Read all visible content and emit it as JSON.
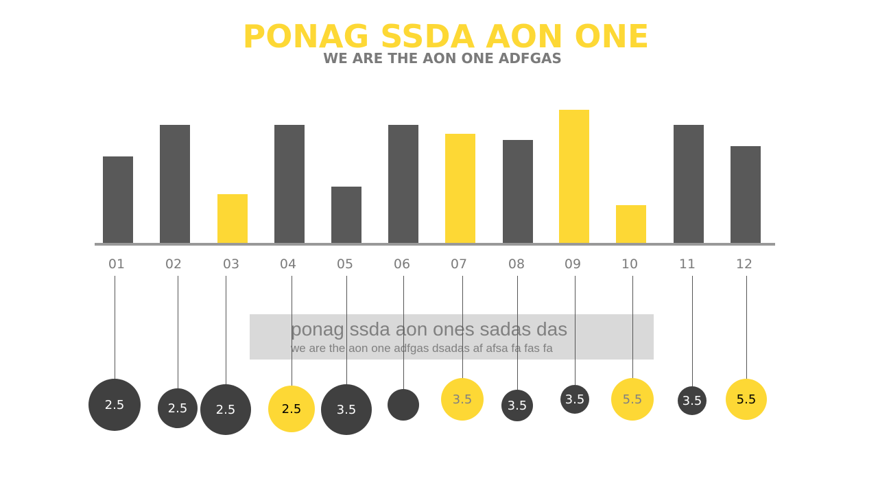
{
  "header": {
    "title": "PONAG SSDA AON ONE",
    "subtitle": "WE ARE THE AON ONE ADFGAS"
  },
  "textbox": {
    "heading": "ponag ssda aon ones sadas das",
    "body": "we are the aon one adfgas dsadas af afsa fa fas fa"
  },
  "colors": {
    "dark": "#595959",
    "yellow": "#fdd835",
    "bubble_dark": "#404040",
    "axis": "#999999"
  },
  "chart_data": {
    "type": "bar",
    "title": "PONAG SSDA AON ONE",
    "categories": [
      "01",
      "02",
      "03",
      "04",
      "05",
      "06",
      "07",
      "08",
      "09",
      "10",
      "11",
      "12"
    ],
    "values": [
      127,
      173,
      72,
      173,
      83,
      173,
      160,
      151,
      195,
      56,
      173,
      142
    ],
    "highlight": [
      false,
      false,
      true,
      false,
      false,
      false,
      true,
      false,
      true,
      true,
      false,
      false
    ],
    "ylim": [
      0,
      200
    ],
    "grid": false,
    "bubbles": [
      {
        "label": "2.5",
        "size": 38,
        "color": "dark"
      },
      {
        "label": "2.5",
        "size": 29,
        "color": "dark"
      },
      {
        "label": "2.5",
        "size": 37,
        "color": "dark"
      },
      {
        "label": "2.5",
        "size": 34,
        "color": "yellow"
      },
      {
        "label": "3.5",
        "size": 37,
        "color": "dark"
      },
      {
        "label": "",
        "size": 23,
        "color": "dark"
      },
      {
        "label": "3.5",
        "size": 31,
        "color": "yellow"
      },
      {
        "label": "3.5",
        "size": 23,
        "color": "dark"
      },
      {
        "label": "3.5",
        "size": 21,
        "color": "dark"
      },
      {
        "label": "5.5",
        "size": 31,
        "color": "yellow"
      },
      {
        "label": "3.5",
        "size": 21,
        "color": "dark"
      },
      {
        "label": "5.5",
        "size": 30,
        "color": "yellow"
      }
    ]
  }
}
